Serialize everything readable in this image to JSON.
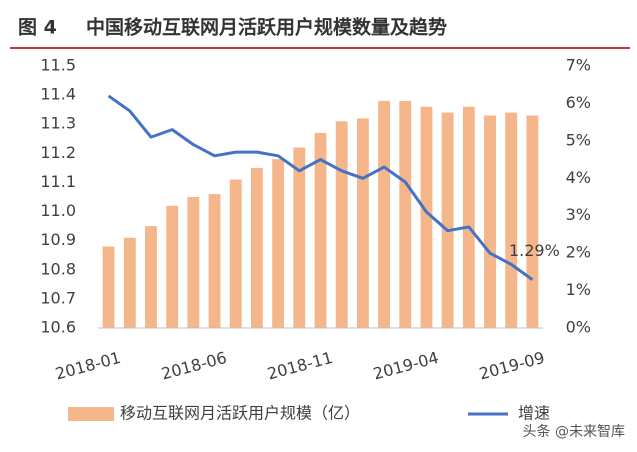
{
  "chart_data": {
    "type": "bar_line",
    "figure_label": "图 4",
    "title": "中国移动互联网月活跃用户规模数量及趋势",
    "watermark": "头条 @未来智库",
    "categories": [
      "2018-01",
      null,
      null,
      null,
      null,
      "2018-06",
      null,
      null,
      null,
      null,
      "2018-11",
      null,
      null,
      null,
      null,
      "2019-04",
      null,
      null,
      null,
      null,
      "2019-09"
    ],
    "series": [
      {
        "name": "移动互联网月活跃用户规模（亿）",
        "type": "bar",
        "color": "#f5b68b",
        "axis": "y",
        "values": [
          10.88,
          10.91,
          10.95,
          11.02,
          11.05,
          11.06,
          11.11,
          11.15,
          11.18,
          11.22,
          11.27,
          11.31,
          11.32,
          11.38,
          11.38,
          11.36,
          11.34,
          11.36,
          11.33,
          11.34,
          11.33
        ]
      },
      {
        "name": "增速",
        "type": "line",
        "color": "#4472c4",
        "axis": "y2",
        "values": [
          6.2,
          5.8,
          5.1,
          5.3,
          4.9,
          4.6,
          4.7,
          4.7,
          4.6,
          4.2,
          4.5,
          4.2,
          4.0,
          4.3,
          3.9,
          3.1,
          2.6,
          2.7,
          2.0,
          1.7,
          1.29
        ],
        "value_labels": [
          null,
          null,
          null,
          null,
          null,
          null,
          null,
          null,
          null,
          null,
          null,
          null,
          null,
          null,
          null,
          null,
          null,
          null,
          null,
          null,
          "1.29%"
        ]
      }
    ],
    "ylim": [
      10.6,
      11.5
    ],
    "yticks": [
      10.6,
      10.7,
      10.8,
      10.9,
      {
        "value": 11,
        "label": "11.0"
      },
      11.1,
      11.2,
      11.3,
      11.4,
      11.5
    ],
    "y2lim": [
      0,
      7
    ],
    "y2ticks": [
      {
        "value": 0,
        "label": "0%"
      },
      {
        "value": 1,
        "label": "1%"
      },
      {
        "value": 2,
        "label": "2%"
      },
      {
        "value": 3,
        "label": "3%"
      },
      {
        "value": 4,
        "label": "4%"
      },
      {
        "value": 5,
        "label": "5%"
      },
      {
        "value": 6,
        "label": "6%"
      },
      {
        "value": 7,
        "label": "7%"
      }
    ],
    "grid": false,
    "legend": "bottom"
  }
}
